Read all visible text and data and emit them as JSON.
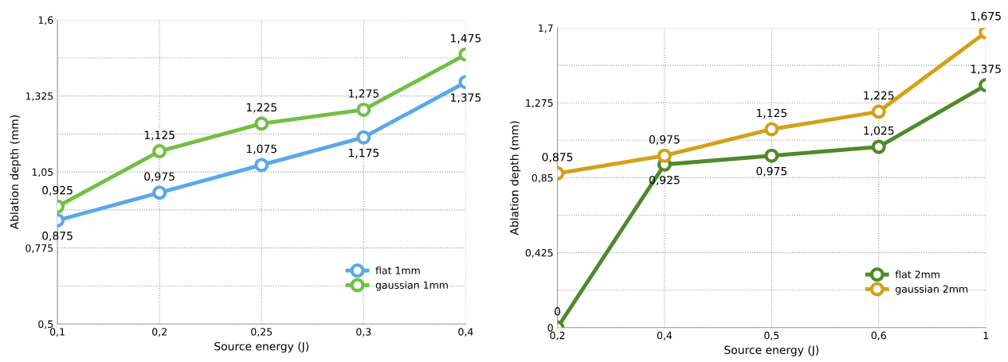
{
  "chart_data": [
    {
      "type": "line",
      "xlabel": "Source energy (J)",
      "ylabel": "Ablation depth (mm)",
      "categories": [
        "0,1",
        "0,2",
        "0,25",
        "0,3",
        "0,4"
      ],
      "series": [
        {
          "name": "flat 1mm",
          "color": "#5aa9e6",
          "values": [
            0.875,
            0.975,
            1.075,
            1.175,
            1.375
          ],
          "value_labels": [
            "0,875",
            "0,975",
            "1,075",
            "1,175",
            "1,375"
          ]
        },
        {
          "name": "gaussian 1mm",
          "color": "#72bf44",
          "values": [
            0.925,
            1.125,
            1.225,
            1.275,
            1.475
          ],
          "value_labels": [
            "0,925",
            "1,125",
            "1,225",
            "1,275",
            "1,475"
          ]
        }
      ],
      "ylim": [
        0.5,
        1.6
      ],
      "yticks": [
        {
          "value": 0.5,
          "label": "0,5"
        },
        {
          "value": 0.6375,
          "label": null
        },
        {
          "value": 0.775,
          "label": "0,775"
        },
        {
          "value": 0.9125,
          "label": null
        },
        {
          "value": 1.05,
          "label": "1,05"
        },
        {
          "value": 1.1875,
          "label": null
        },
        {
          "value": 1.325,
          "label": "1,325"
        },
        {
          "value": 1.4625,
          "label": null
        },
        {
          "value": 1.6,
          "label": "1,6"
        }
      ],
      "grid": true,
      "legend": "bottom right",
      "marker": "circle",
      "line_style": "solid"
    },
    {
      "type": "line",
      "xlabel": "Source energy (J)",
      "ylabel": "Ablation depth (mm)",
      "categories": [
        "0,2",
        "0,4",
        "0,5",
        "0,6",
        "1"
      ],
      "series": [
        {
          "name": "flat 2mm",
          "color": "#4e8a2a",
          "values": [
            0,
            0.925,
            0.975,
            1.025,
            1.375
          ],
          "value_labels": [
            "0",
            "0,925",
            "0,975",
            "1,025",
            "1,375"
          ]
        },
        {
          "name": "gaussian 2mm",
          "color": "#d4a017",
          "values": [
            0.875,
            0.975,
            1.125,
            1.225,
            1.675
          ],
          "value_labels": [
            "0,875",
            "0,975",
            "1,125",
            "1,225",
            "1,675"
          ]
        }
      ],
      "ylim": [
        0,
        1.7
      ],
      "yticks": [
        {
          "value": 0,
          "label": "0"
        },
        {
          "value": 0.2125,
          "label": null
        },
        {
          "value": 0.425,
          "label": "0,425"
        },
        {
          "value": 0.6375,
          "label": null
        },
        {
          "value": 0.85,
          "label": "0,85"
        },
        {
          "value": 1.0625,
          "label": null
        },
        {
          "value": 1.275,
          "label": "1,275"
        },
        {
          "value": 1.4875,
          "label": null
        },
        {
          "value": 1.7,
          "label": "1,7"
        }
      ],
      "grid": true,
      "legend": "bottom right",
      "marker": "circle",
      "line_style": "solid"
    }
  ]
}
